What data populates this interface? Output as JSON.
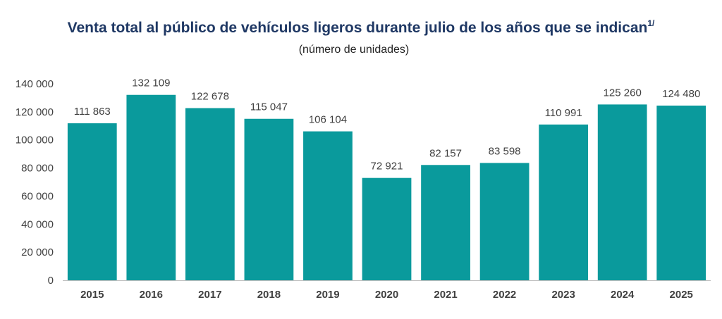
{
  "header": {
    "title": "Venta total al público de vehículos ligeros durante julio de los años que se indican",
    "title_footnote": "1/",
    "subtitle": "(número de unidades)"
  },
  "colors": {
    "bar": "#0a9a9c",
    "title": "#1f3864",
    "text": "#404040",
    "axis": "#bfbfbf"
  },
  "chart_data": {
    "type": "bar",
    "title": "Venta total al público de vehículos ligeros durante julio de los años que se indican",
    "subtitle": "(número de unidades)",
    "categories": [
      "2015",
      "2016",
      "2017",
      "2018",
      "2019",
      "2020",
      "2021",
      "2022",
      "2023",
      "2024",
      "2025"
    ],
    "values": [
      111863,
      132109,
      122678,
      115047,
      106104,
      72921,
      82157,
      83598,
      110991,
      125260,
      124480
    ],
    "value_labels": [
      "111 863",
      "132 109",
      "122 678",
      "115 047",
      "106 104",
      "72 921",
      "82 157",
      "83 598",
      "110 991",
      "125 260",
      "124 480"
    ],
    "ylim": [
      0,
      140000
    ],
    "yticks": [
      0,
      20000,
      40000,
      60000,
      80000,
      100000,
      120000,
      140000
    ],
    "ytick_labels": [
      "0",
      "20 000",
      "40 000",
      "60 000",
      "80 000",
      "100 000",
      "120 000",
      "140 000"
    ],
    "grid": false,
    "legend": "none"
  }
}
